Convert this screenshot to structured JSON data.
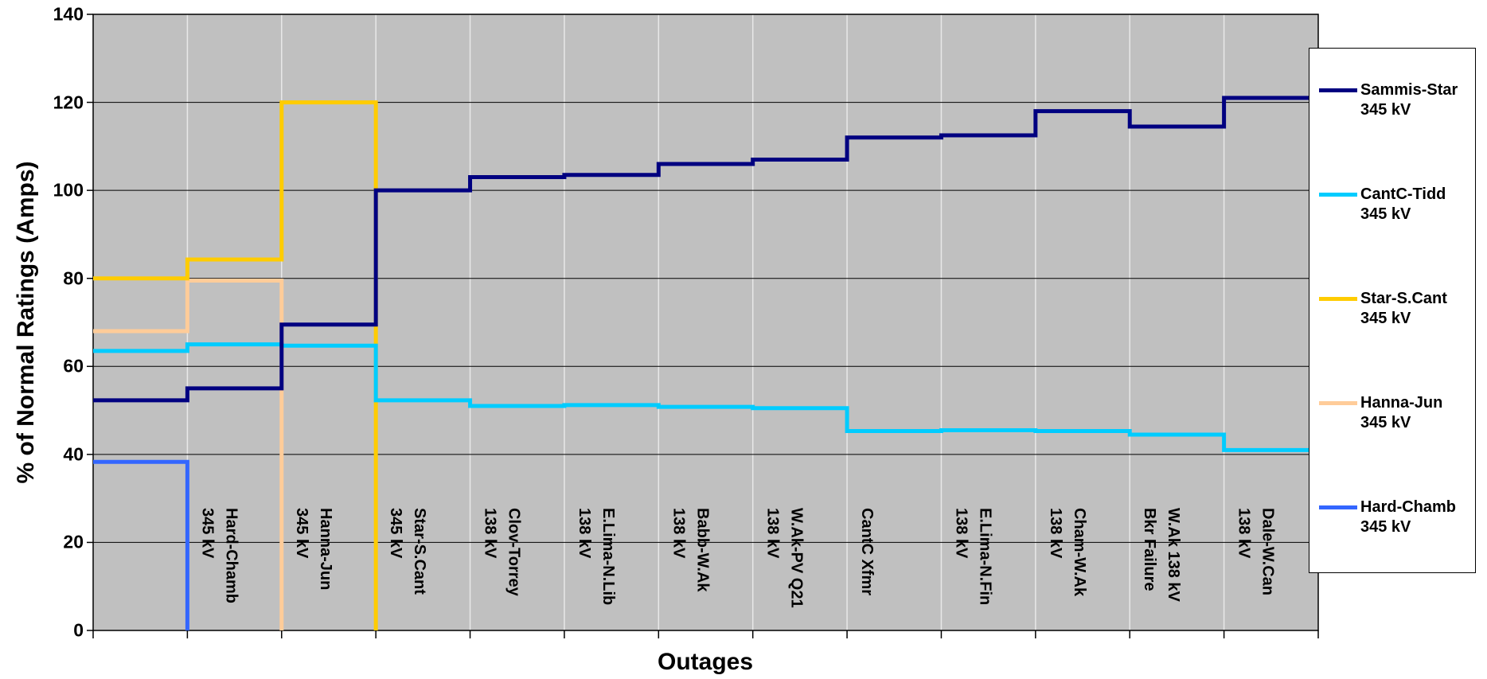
{
  "chart_data": {
    "type": "step-line",
    "ylabel": "% of Normal Ratings (Amps)",
    "xlabel": "Outages",
    "categories": [
      null,
      "Hard-Chamb\n345 kV",
      "Hanna-Jun\n345 kV",
      "Star-S.Cant\n345 kV",
      "Clov-Torrey\n138 kV",
      "E.Lima-N.Lib\n138 kV",
      "Babb-W.Ak\n138 kV",
      "W.Ak-PV Q21\n138 kV",
      "CantC Xfmr",
      "E.Lima-N.Fin\n138 kV",
      "Cham-W.Ak\n138 kV",
      "W.Ak 138 kV\nBkr Failure",
      "Dale-W.Can\n138 kV",
      null
    ],
    "series": [
      {
        "name": "Sammis-Star\n345 kV",
        "color": "#000080",
        "values": [
          52.3,
          55,
          69.5,
          100,
          103,
          103.5,
          106,
          107,
          112,
          112.5,
          118,
          114.5,
          121,
          121
        ]
      },
      {
        "name": "CantC-Tidd\n345 kV",
        "color": "#00ccff",
        "values": [
          63.5,
          65,
          64.7,
          52.3,
          51,
          51.2,
          50.8,
          50.5,
          45.3,
          45.5,
          45.3,
          44.5,
          41,
          41
        ]
      },
      {
        "name": "Star-S.Cant\n345 kV",
        "color": "#ffcc00",
        "values": [
          80,
          84.3,
          120,
          0,
          null,
          null,
          null,
          null,
          null,
          null,
          null,
          null,
          null,
          null
        ]
      },
      {
        "name": "Hanna-Jun\n345 kV",
        "color": "#ffcc99",
        "values": [
          68,
          79.5,
          0,
          null,
          null,
          null,
          null,
          null,
          null,
          null,
          null,
          null,
          null,
          null
        ]
      },
      {
        "name": "Hard-Chamb\n345 kV",
        "color": "#3366ff",
        "values": [
          38.3,
          0,
          null,
          null,
          null,
          null,
          null,
          null,
          null,
          null,
          null,
          null,
          null,
          null
        ]
      }
    ],
    "ylim": [
      0,
      140
    ],
    "yticks": [
      0,
      20,
      40,
      60,
      80,
      100,
      120,
      140
    ],
    "grid": true,
    "legend": "right"
  }
}
